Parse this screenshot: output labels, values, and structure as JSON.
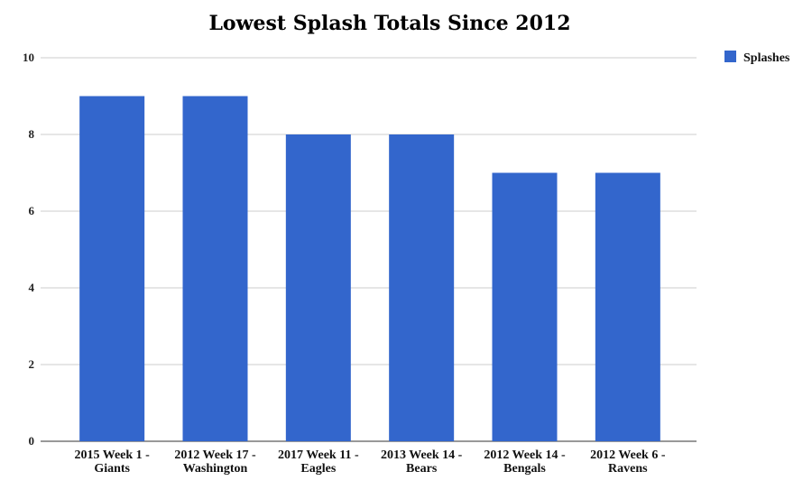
{
  "chart_data": {
    "type": "bar",
    "title": "Lowest Splash Totals Since 2012",
    "xlabel": "",
    "ylabel": "",
    "categories": [
      [
        "2015 Week 1 -",
        "Giants"
      ],
      [
        "2012 Week 17 -",
        "Washington"
      ],
      [
        "2017 Week 11 -",
        "Eagles"
      ],
      [
        "2013 Week 14 -",
        "Bears"
      ],
      [
        "2012 Week 14 -",
        "Bengals"
      ],
      [
        "2012 Week 6 -",
        "Ravens"
      ]
    ],
    "series": [
      {
        "name": "Splashes",
        "values": [
          9,
          9,
          8,
          8,
          7,
          7
        ],
        "color": "#3366cc"
      }
    ],
    "ylim": [
      0,
      10
    ],
    "yticks": [
      0,
      2,
      4,
      6,
      8,
      10
    ],
    "grid": true,
    "legend": "top-right"
  }
}
